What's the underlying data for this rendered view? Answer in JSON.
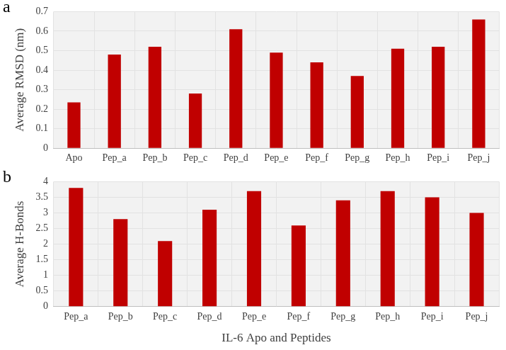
{
  "chart_data": [
    {
      "type": "bar",
      "title": "a",
      "categories": [
        "Apo",
        "Pep_a",
        "Pep_b",
        "Pep_c",
        "Pep_d",
        "Pep_e",
        "Pep_f",
        "Pep_g",
        "Pep_h",
        "Pep_i",
        "Pep_j"
      ],
      "values": [
        0.235,
        0.48,
        0.52,
        0.28,
        0.61,
        0.49,
        0.44,
        0.37,
        0.51,
        0.52,
        0.66
      ],
      "color": "#c00000",
      "y_label": "Average RMSD (nm)",
      "ylim": [
        0,
        0.7
      ],
      "yticks": [
        0,
        0.1,
        0.2,
        0.3,
        0.4,
        0.5,
        0.6,
        0.7
      ],
      "grid": true
    },
    {
      "type": "bar",
      "title": "b",
      "categories": [
        "Pep_a",
        "Pep_b",
        "Pep_c",
        "Pep_d",
        "Pep_e",
        "Pep_f",
        "Pep_g",
        "Pep_h",
        "Pep_i",
        "Pep_j"
      ],
      "values": [
        3.8,
        2.8,
        2.1,
        3.1,
        3.7,
        2.6,
        3.4,
        3.7,
        3.5,
        3.0
      ],
      "color": "#c00000",
      "x_label": "IL-6 Apo and Peptides",
      "y_label": "Average H-Bonds",
      "ylim": [
        0,
        4
      ],
      "yticks": [
        0,
        0.5,
        1,
        1.5,
        2,
        2.5,
        3,
        3.5,
        4
      ],
      "grid": true
    }
  ]
}
